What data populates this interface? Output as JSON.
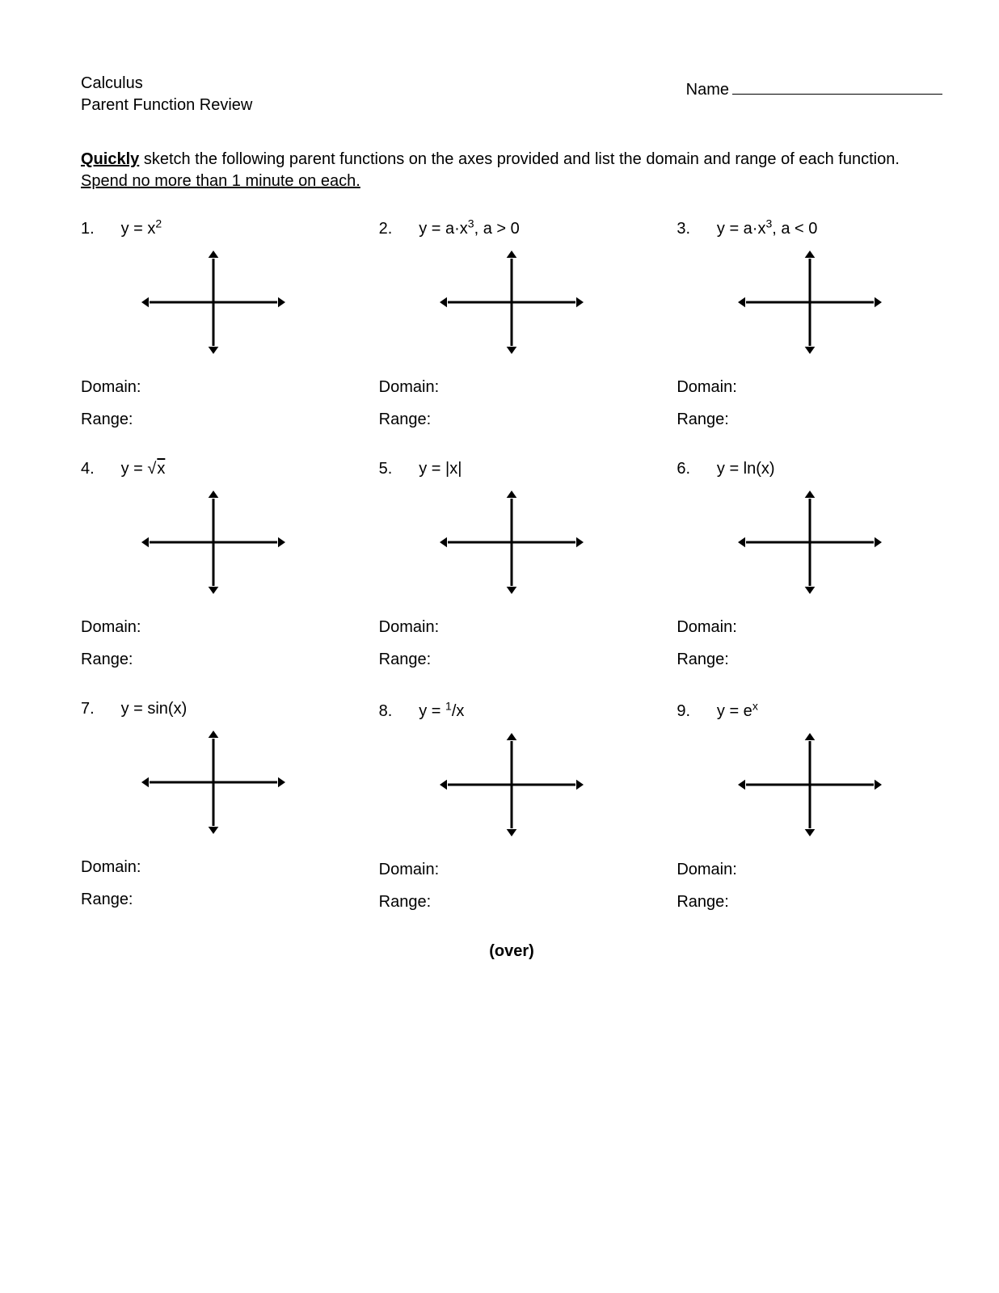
{
  "header": {
    "course": "Calculus",
    "subtitle": "Parent Function Review",
    "name_label": "Name"
  },
  "instructions": {
    "lead_bold": "Quickly",
    "mid": " sketch the following parent functions on the axes provided and list the domain and range of each function. ",
    "tail_underline": "Spend no more than 1 minute on each."
  },
  "labels": {
    "domain": "Domain:",
    "range": "Range:"
  },
  "axes": {
    "width": 180,
    "height": 130,
    "stroke": "#000000",
    "stroke_width": 3,
    "arrow_size": 9
  },
  "problems": [
    {
      "num": "1.",
      "eq_html": "y = x<sup>2</sup>"
    },
    {
      "num": "2.",
      "eq_html": "y = a·x<sup>3</sup>, a > 0"
    },
    {
      "num": "3.",
      "eq_html": "y = a·x<sup>3</sup>, a < 0"
    },
    {
      "num": "4.",
      "eq_html": "y = √<span class=\"sqrt-sym\">x</span>"
    },
    {
      "num": "5.",
      "eq_html": "y = |x|"
    },
    {
      "num": "6.",
      "eq_html": "y = ln(x)"
    },
    {
      "num": "7.",
      "eq_html": "y = sin(x)"
    },
    {
      "num": "8.",
      "eq_html": "y = <sup>1</sup>/x"
    },
    {
      "num": "9.",
      "eq_html": "y = e<sup>x</sup>"
    }
  ],
  "footer": "(over)"
}
